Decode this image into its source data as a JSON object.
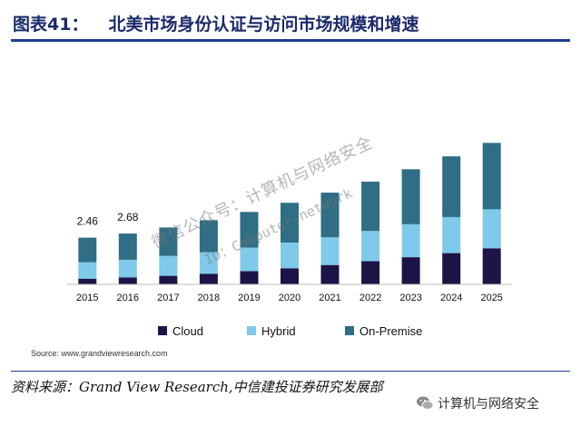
{
  "header": {
    "figure_number": "图表41：",
    "title": "北美市场身份认证与访问市场规模和增速"
  },
  "chart_data": {
    "type": "bar",
    "stacked": true,
    "categories": [
      "2015",
      "2016",
      "2017",
      "2018",
      "2019",
      "2020",
      "2021",
      "2022",
      "2023",
      "2024",
      "2025"
    ],
    "series": [
      {
        "name": "Cloud",
        "color": "#1c1446",
        "values": [
          0.3,
          0.36,
          0.45,
          0.56,
          0.7,
          0.85,
          1.02,
          1.22,
          1.43,
          1.65,
          1.9
        ]
      },
      {
        "name": "Hybrid",
        "color": "#7fc9ea",
        "values": [
          0.86,
          0.94,
          1.05,
          1.14,
          1.24,
          1.35,
          1.47,
          1.6,
          1.74,
          1.9,
          2.06
        ]
      },
      {
        "name": "On-Premise",
        "color": "#2f6e84",
        "values": [
          1.3,
          1.38,
          1.5,
          1.68,
          1.88,
          2.1,
          2.35,
          2.6,
          2.9,
          3.2,
          3.5
        ]
      }
    ],
    "data_labels": [
      {
        "category": "2015",
        "text": "2.46"
      },
      {
        "category": "2016",
        "text": "2.68"
      }
    ],
    "ylim": [
      0,
      8
    ],
    "grid": false,
    "legend": "bottom",
    "source": "Source: www.grandviewresearch.com"
  },
  "footer": {
    "source_note": "资料来源：Grand View Research,中信建投证券研究发展部"
  },
  "watermark": {
    "line1": "微信公众号：计算机与网络安全",
    "line2": "ID：Computer-network"
  },
  "badge": {
    "label": "计算机与网络安全",
    "icon": "wechat-icon"
  }
}
